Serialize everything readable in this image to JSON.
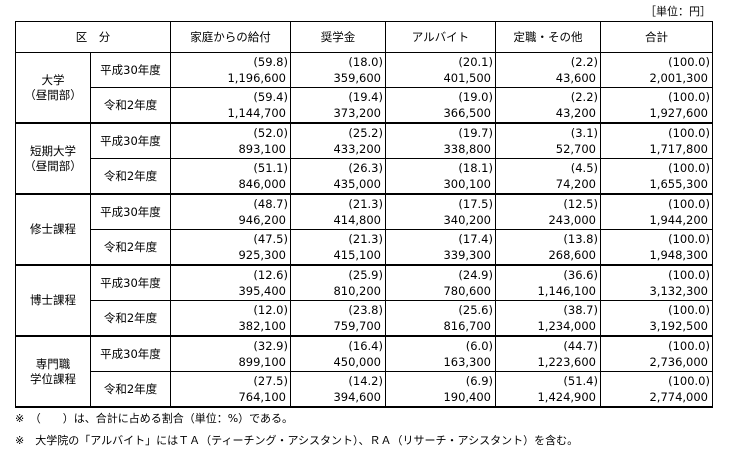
{
  "unit": "［単位：円］",
  "header": {
    "division": "区　分",
    "columns": [
      "家庭からの給付",
      "奨学金",
      "アルバイト",
      "定職・その他",
      "合計"
    ]
  },
  "groups": [
    {
      "label": [
        "大学",
        "（昼間部）"
      ],
      "rows": [
        {
          "year": "平成30年度",
          "cells": [
            {
              "percent": "(59.8)",
              "amount": "1,196,600"
            },
            {
              "percent": "(18.0)",
              "amount": "359,600"
            },
            {
              "percent": "(20.1)",
              "amount": "401,500"
            },
            {
              "percent": "(2.2)",
              "amount": "43,600"
            },
            {
              "percent": "(100.0)",
              "amount": "2,001,300"
            }
          ]
        },
        {
          "year": "令和2年度",
          "cells": [
            {
              "percent": "(59.4)",
              "amount": "1,144,700"
            },
            {
              "percent": "(19.4)",
              "amount": "373,200"
            },
            {
              "percent": "(19.0)",
              "amount": "366,500"
            },
            {
              "percent": "(2.2)",
              "amount": "43,200"
            },
            {
              "percent": "(100.0)",
              "amount": "1,927,600"
            }
          ]
        }
      ]
    },
    {
      "label": [
        "短期大学",
        "（昼間部）"
      ],
      "rows": [
        {
          "year": "平成30年度",
          "cells": [
            {
              "percent": "(52.0)",
              "amount": "893,100"
            },
            {
              "percent": "(25.2)",
              "amount": "433,200"
            },
            {
              "percent": "(19.7)",
              "amount": "338,800"
            },
            {
              "percent": "(3.1)",
              "amount": "52,700"
            },
            {
              "percent": "(100.0)",
              "amount": "1,717,800"
            }
          ]
        },
        {
          "year": "令和2年度",
          "cells": [
            {
              "percent": "(51.1)",
              "amount": "846,000"
            },
            {
              "percent": "(26.3)",
              "amount": "435,000"
            },
            {
              "percent": "(18.1)",
              "amount": "300,100"
            },
            {
              "percent": "(4.5)",
              "amount": "74,200"
            },
            {
              "percent": "(100.0)",
              "amount": "1,655,300"
            }
          ]
        }
      ]
    },
    {
      "label": [
        "修士課程"
      ],
      "rows": [
        {
          "year": "平成30年度",
          "cells": [
            {
              "percent": "(48.7)",
              "amount": "946,200"
            },
            {
              "percent": "(21.3)",
              "amount": "414,800"
            },
            {
              "percent": "(17.5)",
              "amount": "340,200"
            },
            {
              "percent": "(12.5)",
              "amount": "243,000"
            },
            {
              "percent": "(100.0)",
              "amount": "1,944,200"
            }
          ]
        },
        {
          "year": "令和2年度",
          "cells": [
            {
              "percent": "(47.5)",
              "amount": "925,300"
            },
            {
              "percent": "(21.3)",
              "amount": "415,100"
            },
            {
              "percent": "(17.4)",
              "amount": "339,300"
            },
            {
              "percent": "(13.8)",
              "amount": "268,600"
            },
            {
              "percent": "(100.0)",
              "amount": "1,948,300"
            }
          ]
        }
      ]
    },
    {
      "label": [
        "博士課程"
      ],
      "rows": [
        {
          "year": "平成30年度",
          "cells": [
            {
              "percent": "(12.6)",
              "amount": "395,400"
            },
            {
              "percent": "(25.9)",
              "amount": "810,200"
            },
            {
              "percent": "(24.9)",
              "amount": "780,600"
            },
            {
              "percent": "(36.6)",
              "amount": "1,146,100"
            },
            {
              "percent": "(100.0)",
              "amount": "3,132,300"
            }
          ]
        },
        {
          "year": "令和2年度",
          "cells": [
            {
              "percent": "(12.0)",
              "amount": "382,100"
            },
            {
              "percent": "(23.8)",
              "amount": "759,700"
            },
            {
              "percent": "(25.6)",
              "amount": "816,700"
            },
            {
              "percent": "(38.7)",
              "amount": "1,234,000"
            },
            {
              "percent": "(100.0)",
              "amount": "3,192,500"
            }
          ]
        }
      ]
    },
    {
      "label": [
        "専門職",
        "学位課程"
      ],
      "rows": [
        {
          "year": "平成30年度",
          "cells": [
            {
              "percent": "(32.9)",
              "amount": "899,100"
            },
            {
              "percent": "(16.4)",
              "amount": "450,000"
            },
            {
              "percent": "(6.0)",
              "amount": "163,300"
            },
            {
              "percent": "(44.7)",
              "amount": "1,223,600"
            },
            {
              "percent": "(100.0)",
              "amount": "2,736,000"
            }
          ]
        },
        {
          "year": "令和2年度",
          "cells": [
            {
              "percent": "(27.5)",
              "amount": "764,100"
            },
            {
              "percent": "(14.2)",
              "amount": "394,600"
            },
            {
              "percent": "(6.9)",
              "amount": "190,400"
            },
            {
              "percent": "(51.4)",
              "amount": "1,424,900"
            },
            {
              "percent": "(100.0)",
              "amount": "2,774,000"
            }
          ]
        }
      ]
    }
  ],
  "notes": [
    "※　（　　）は、合計に占める割合（単位：%）である。",
    "※　大学院の「アルバイト」にはＴＡ（ティーチング・アシスタント）、ＲＡ（リサーチ・アシスタント）を含む。"
  ]
}
